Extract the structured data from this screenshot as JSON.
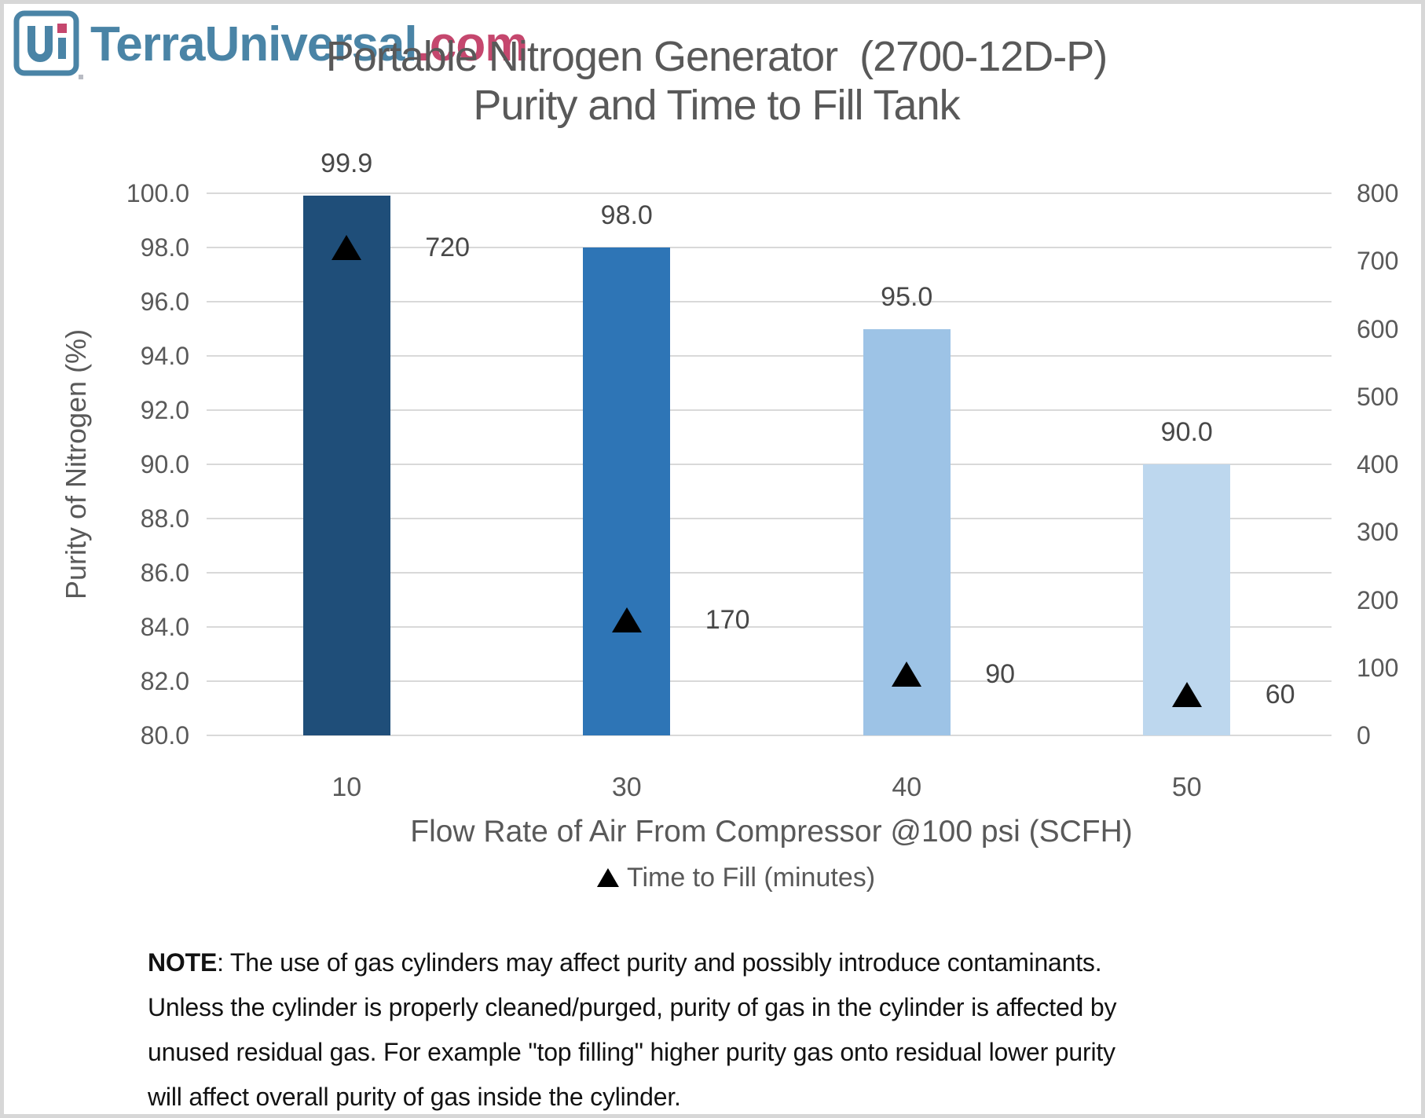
{
  "logo": {
    "brand": "TerraUniversal",
    "domain": ".com",
    "icon_letters": "Ui",
    "brand_color": "#4a84a6",
    "domain_color": "#c5476e"
  },
  "title": {
    "line1": "Portable Nitrogen Generator  (2700-12D-P)",
    "line2": "Purity and Time to Fill Tank"
  },
  "chart_data": {
    "type": "bar",
    "categories": [
      "10",
      "30",
      "40",
      "50"
    ],
    "series": [
      {
        "name": "Purity of Nitrogen (%)",
        "type": "bar",
        "axis": "left",
        "values": [
          99.9,
          98.0,
          95.0,
          90.0
        ],
        "data_labels": [
          "99.9",
          "98.0",
          "95.0",
          "90.0"
        ],
        "bar_colors": [
          "#1F4E79",
          "#2E75B6",
          "#9DC3E6",
          "#BDD7EE"
        ]
      },
      {
        "name": "Time to Fill (minutes)",
        "type": "scatter",
        "marker": "triangle",
        "marker_color": "#000000",
        "axis": "right",
        "values": [
          720,
          170,
          90,
          60
        ],
        "data_labels": [
          "720",
          "170",
          "90",
          "60"
        ]
      }
    ],
    "left_axis": {
      "title": "Purity of Nitrogen (%)",
      "min": 80.0,
      "max": 100.0,
      "step": 2.0,
      "tick_labels": [
        "100.0",
        "98.0",
        "96.0",
        "94.0",
        "92.0",
        "90.0",
        "88.0",
        "86.0",
        "84.0",
        "82.0",
        "80.0"
      ]
    },
    "right_axis": {
      "min": 0,
      "max": 800,
      "step": 100,
      "tick_labels": [
        "800",
        "700",
        "600",
        "500",
        "400",
        "300",
        "200",
        "100",
        "0"
      ]
    },
    "x_axis": {
      "title": "Flow Rate of Air From Compressor @100 psi (SCFH)"
    },
    "legend": {
      "position": "bottom",
      "entries": [
        {
          "label": "Time to Fill (minutes)",
          "marker": "triangle",
          "marker_color": "#000000"
        }
      ]
    },
    "grid": true,
    "gridline_color": "#D9D9D9"
  },
  "note": {
    "label": "NOTE",
    "line1": ": The use of gas cylinders may affect purity and possibly introduce contaminants.",
    "line2": "Unless the cylinder is properly cleaned/purged, purity of gas in the cylinder is affected by",
    "line3": "unused residual gas. For example \"top filling\" higher purity gas onto residual lower purity",
    "line4": "will affect overall purity of gas inside the cylinder."
  }
}
